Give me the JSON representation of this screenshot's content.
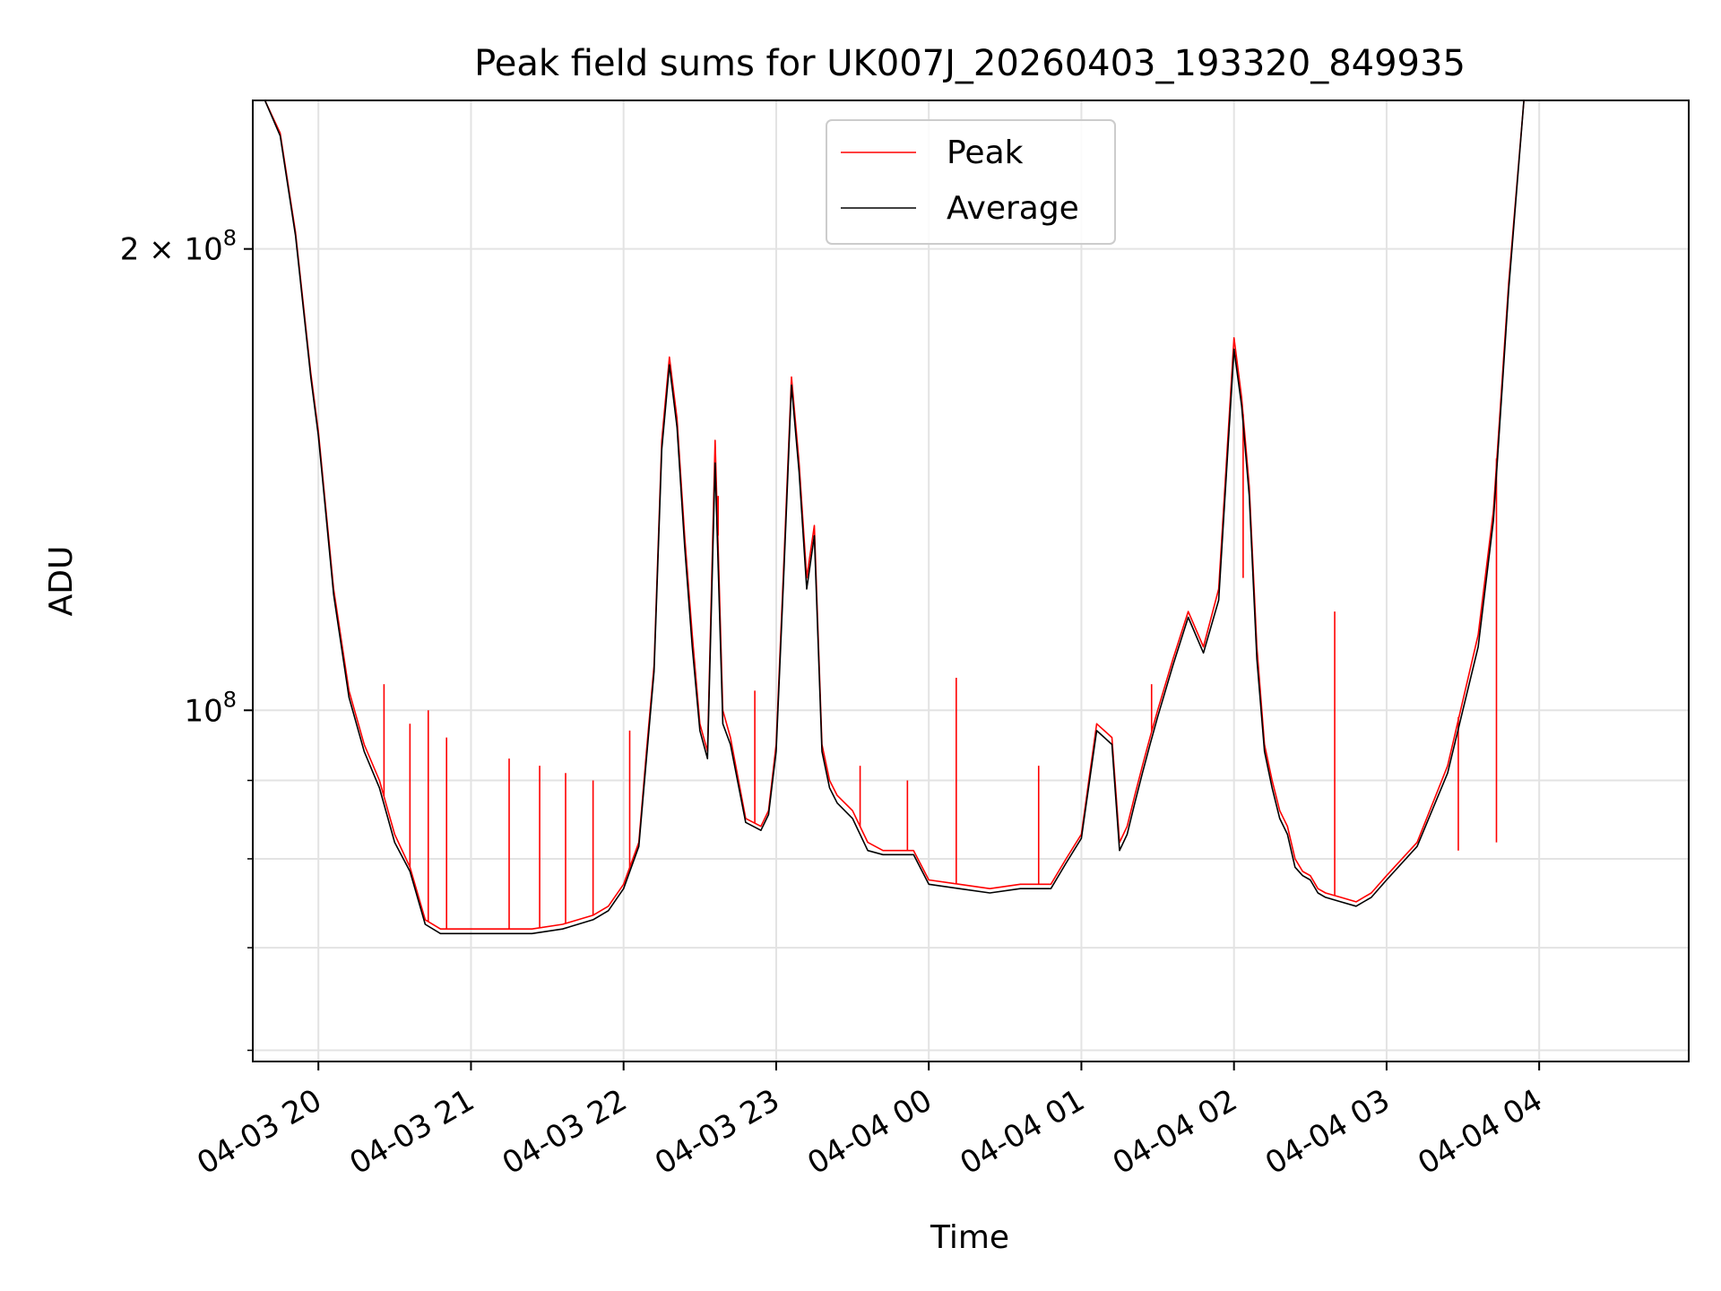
{
  "chart_data": {
    "type": "line",
    "title": "Peak field sums for UK007J_20260403_193320_849935",
    "xlabel": "Time",
    "ylabel": "ADU",
    "yscale": "log",
    "ylim": [
      59000000,
      250000000
    ],
    "xlim": [
      19.57,
      28.98
    ],
    "grid": true,
    "legend_position": "upper center",
    "x_ticks": [
      {
        "value": 20,
        "label": "04-03 20"
      },
      {
        "value": 21,
        "label": "04-03 21"
      },
      {
        "value": 22,
        "label": "04-03 22"
      },
      {
        "value": 23,
        "label": "04-03 23"
      },
      {
        "value": 24,
        "label": "04-04 00"
      },
      {
        "value": 25,
        "label": "04-04 01"
      },
      {
        "value": 26,
        "label": "04-04 02"
      },
      {
        "value": 27,
        "label": "04-04 03"
      },
      {
        "value": 28,
        "label": "04-04 04"
      }
    ],
    "y_ticks_major": [
      {
        "value": 200000000,
        "mantissa": "2",
        "exp": "8"
      },
      {
        "value": 100000000,
        "mantissa": "",
        "exp": "8"
      }
    ],
    "y_ticks_minor": [
      60000000,
      70000000,
      80000000,
      90000000
    ],
    "series": [
      {
        "name": "Peak",
        "color": "#ff0000",
        "x": [
          19.57,
          19.65,
          19.75,
          19.85,
          19.95,
          20.0,
          20.1,
          20.2,
          20.3,
          20.4,
          20.5,
          20.6,
          20.7,
          20.8,
          20.9,
          21.0,
          21.2,
          21.4,
          21.6,
          21.8,
          21.9,
          22.0,
          22.1,
          22.15,
          22.2,
          22.25,
          22.3,
          22.35,
          22.4,
          22.45,
          22.5,
          22.55,
          22.6,
          22.65,
          22.7,
          22.8,
          22.9,
          22.95,
          23.0,
          23.05,
          23.1,
          23.15,
          23.2,
          23.25,
          23.3,
          23.35,
          23.4,
          23.5,
          23.6,
          23.7,
          23.8,
          23.9,
          24.0,
          24.2,
          24.4,
          24.6,
          24.8,
          24.9,
          25.0,
          25.1,
          25.2,
          25.25,
          25.3,
          25.35,
          25.4,
          25.45,
          25.5,
          25.6,
          25.7,
          25.8,
          25.9,
          26.0,
          26.05,
          26.1,
          26.15,
          26.2,
          26.25,
          26.3,
          26.35,
          26.4,
          26.45,
          26.5,
          26.55,
          26.6,
          26.7,
          26.8,
          26.9,
          27.0,
          27.2,
          27.4,
          27.6,
          27.7,
          27.8,
          27.9,
          28.0,
          28.2,
          28.4,
          28.6,
          28.8,
          28.98
        ],
        "y": [
          250000000,
          250000000,
          238000000,
          205000000,
          166000000,
          152000000,
          120000000,
          103000000,
          95000000,
          90000000,
          83000000,
          79000000,
          73000000,
          72000000,
          72000000,
          72000000,
          72000000,
          72000000,
          72500000,
          73500000,
          74500000,
          77000000,
          82000000,
          94000000,
          107000000,
          150000000,
          170000000,
          155000000,
          130000000,
          112000000,
          98000000,
          94000000,
          150000000,
          100000000,
          96000000,
          85000000,
          84000000,
          86000000,
          95000000,
          125000000,
          165000000,
          145000000,
          122000000,
          132000000,
          95000000,
          90000000,
          88000000,
          86000000,
          82000000,
          81000000,
          81000000,
          81000000,
          77500000,
          77000000,
          76500000,
          77000000,
          77000000,
          80000000,
          83000000,
          98000000,
          96000000,
          82000000,
          84000000,
          88000000,
          92000000,
          96000000,
          100000000,
          108000000,
          116000000,
          110000000,
          120000000,
          175000000,
          160000000,
          140000000,
          110000000,
          95000000,
          90000000,
          86000000,
          84000000,
          80000000,
          78500000,
          78000000,
          76500000,
          76000000,
          75500000,
          75000000,
          76000000,
          78000000,
          82000000,
          92000000,
          112000000,
          135000000,
          190000000,
          250000000,
          250000000,
          250000000,
          250000000,
          250000000,
          250000000,
          250000000
        ],
        "spikes": [
          {
            "x": 20.43,
            "y": 104000000
          },
          {
            "x": 20.6,
            "y": 98000000
          },
          {
            "x": 20.72,
            "y": 100000000
          },
          {
            "x": 20.84,
            "y": 96000000
          },
          {
            "x": 21.25,
            "y": 93000000
          },
          {
            "x": 21.45,
            "y": 92000000
          },
          {
            "x": 21.62,
            "y": 91000000
          },
          {
            "x": 21.8,
            "y": 90000000
          },
          {
            "x": 22.04,
            "y": 97000000
          },
          {
            "x": 22.62,
            "y": 138000000
          },
          {
            "x": 22.86,
            "y": 103000000
          },
          {
            "x": 23.55,
            "y": 92000000
          },
          {
            "x": 23.86,
            "y": 90000000
          },
          {
            "x": 24.18,
            "y": 105000000
          },
          {
            "x": 24.72,
            "y": 92000000
          },
          {
            "x": 25.46,
            "y": 104000000
          },
          {
            "x": 26.06,
            "y": 122000000
          },
          {
            "x": 26.66,
            "y": 116000000
          },
          {
            "x": 27.47,
            "y": 81000000
          },
          {
            "x": 27.72,
            "y": 82000000
          }
        ]
      },
      {
        "name": "Average",
        "color": "#000000",
        "x": [
          19.57,
          19.65,
          19.75,
          19.85,
          19.95,
          20.0,
          20.1,
          20.2,
          20.3,
          20.4,
          20.5,
          20.6,
          20.7,
          20.8,
          20.9,
          21.0,
          21.2,
          21.4,
          21.6,
          21.8,
          21.9,
          22.0,
          22.1,
          22.15,
          22.2,
          22.25,
          22.3,
          22.35,
          22.4,
          22.45,
          22.5,
          22.55,
          22.6,
          22.65,
          22.7,
          22.8,
          22.9,
          22.95,
          23.0,
          23.05,
          23.1,
          23.15,
          23.2,
          23.25,
          23.3,
          23.35,
          23.4,
          23.5,
          23.6,
          23.7,
          23.8,
          23.9,
          24.0,
          24.2,
          24.4,
          24.6,
          24.8,
          24.9,
          25.0,
          25.1,
          25.2,
          25.25,
          25.3,
          25.35,
          25.4,
          25.45,
          25.5,
          25.6,
          25.7,
          25.8,
          25.9,
          26.0,
          26.05,
          26.1,
          26.15,
          26.2,
          26.25,
          26.3,
          26.35,
          26.4,
          26.45,
          26.5,
          26.55,
          26.6,
          26.7,
          26.8,
          26.9,
          27.0,
          27.2,
          27.4,
          27.6,
          27.7,
          27.8,
          27.9,
          28.0,
          28.2,
          28.4,
          28.6,
          28.8,
          28.98
        ],
        "y": [
          250000000,
          250000000,
          237000000,
          204000000,
          165000000,
          151000000,
          119000000,
          102000000,
          94000000,
          89000000,
          82000000,
          78500000,
          72500000,
          71500000,
          71500000,
          71500000,
          71500000,
          71500000,
          72000000,
          73000000,
          74000000,
          76500000,
          81500000,
          93000000,
          106000000,
          148000000,
          168000000,
          153000000,
          128000000,
          110000000,
          97000000,
          93000000,
          145000000,
          98000000,
          95000000,
          84500000,
          83500000,
          85500000,
          94000000,
          123000000,
          163000000,
          143000000,
          120000000,
          130000000,
          94000000,
          89000000,
          87000000,
          85000000,
          81000000,
          80500000,
          80500000,
          80500000,
          77000000,
          76500000,
          76000000,
          76500000,
          76500000,
          79500000,
          82500000,
          97000000,
          95000000,
          81000000,
          83000000,
          87000000,
          91000000,
          95000000,
          99000000,
          107000000,
          115000000,
          109000000,
          118000000,
          172000000,
          158000000,
          138000000,
          108000000,
          94000000,
          89000000,
          85000000,
          83000000,
          79000000,
          78000000,
          77500000,
          76000000,
          75500000,
          75000000,
          74500000,
          75500000,
          77500000,
          81500000,
          91000000,
          110000000,
          133000000,
          188000000,
          250000000,
          250000000,
          250000000,
          250000000,
          250000000,
          250000000,
          250000000
        ]
      }
    ]
  }
}
